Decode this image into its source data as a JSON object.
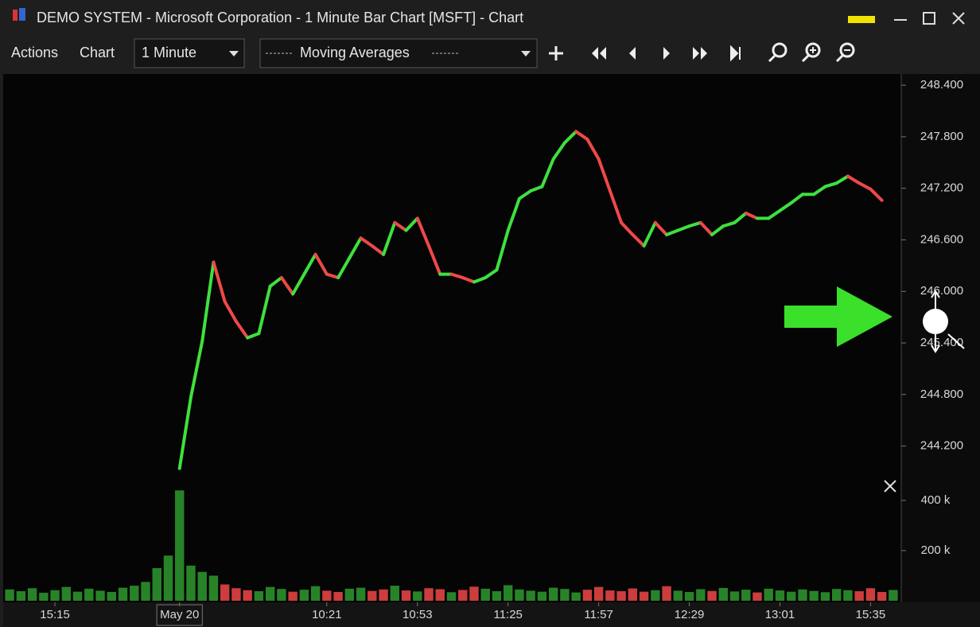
{
  "window": {
    "title": "DEMO SYSTEM - Microsoft Corporation - 1 Minute Bar Chart [MSFT] - Chart"
  },
  "toolbar": {
    "menus": [
      "Actions",
      "Chart"
    ],
    "interval": "1 Minute",
    "study": "Moving Averages"
  },
  "chart_data": {
    "type": "line",
    "categories": [
      null,
      null,
      null,
      null,
      "15:15",
      null,
      null,
      null,
      null,
      null,
      null,
      null,
      null,
      null,
      null,
      "May 20",
      null,
      null,
      null,
      null,
      null,
      null,
      null,
      null,
      null,
      null,
      null,
      null,
      "10:21",
      null,
      null,
      null,
      null,
      null,
      null,
      null,
      "10:53",
      null,
      null,
      null,
      null,
      null,
      null,
      null,
      "11:25",
      null,
      null,
      null,
      null,
      null,
      null,
      null,
      "11:57",
      null,
      null,
      null,
      null,
      null,
      null,
      null,
      "12:29",
      null,
      null,
      null,
      null,
      null,
      null,
      null,
      "13:01",
      null,
      null,
      null,
      null,
      null,
      null,
      null,
      "15:35",
      null,
      null
    ],
    "series": [
      {
        "color": "#3ee03e",
        "down_color": "#f04848",
        "values": [
          null,
          null,
          null,
          null,
          null,
          null,
          null,
          null,
          null,
          null,
          null,
          null,
          null,
          null,
          null,
          243.94,
          244.77,
          245.42,
          246.34,
          245.88,
          245.65,
          245.46,
          245.51,
          246.06,
          246.16,
          245.97,
          246.2,
          246.43,
          246.2,
          246.16,
          246.39,
          246.62,
          246.53,
          246.43,
          246.8,
          246.71,
          246.85,
          246.53,
          246.2,
          246.2,
          246.16,
          246.11,
          246.16,
          246.25,
          246.71,
          247.08,
          247.17,
          247.22,
          247.54,
          247.73,
          247.86,
          247.77,
          247.54,
          247.17,
          246.8,
          246.66,
          246.53,
          246.8,
          246.66,
          246.71,
          246.76,
          246.8,
          246.66,
          246.76,
          246.8,
          246.91,
          246.85,
          246.85,
          246.94,
          247.03,
          247.13,
          247.13,
          247.22,
          247.26,
          247.34,
          247.26,
          247.19,
          247.06,
          null
        ]
      },
      {
        "type": "bar",
        "axis": "y2",
        "color": "#2f9a2f",
        "values": [
          45000,
          38000,
          50000,
          32000,
          42000,
          55000,
          36000,
          48000,
          40000,
          35000,
          52000,
          60000,
          75000,
          130000,
          180000,
          440000,
          140000,
          115000,
          100000,
          65000,
          50000,
          42000,
          38000,
          55000,
          47000,
          36000,
          44000,
          58000,
          40000,
          35000,
          48000,
          52000,
          39000,
          45000,
          60000,
          41000,
          37000,
          50000,
          46000,
          34000,
          43000,
          56000,
          48000,
          38000,
          62000,
          45000,
          40000,
          36000,
          52000,
          47000,
          33000,
          44000,
          55000,
          41000,
          38000,
          49000,
          36000,
          42000,
          58000,
          40000,
          35000,
          46000,
          39000,
          51000,
          37000,
          44000,
          33000,
          48000,
          41000,
          36000,
          45000,
          39000,
          34000,
          47000,
          42000,
          38000,
          50000,
          35000,
          43000
        ]
      }
    ],
    "ylim": [
      242.4,
      248.53
    ],
    "yticks": [
      {
        "value": 244.2,
        "label": "244.200"
      },
      {
        "value": 244.8,
        "label": "244.800"
      },
      {
        "value": 245.4,
        "label": "245.400"
      },
      {
        "value": 246.0,
        "label": "246.000"
      },
      {
        "value": 246.6,
        "label": "246.600"
      },
      {
        "value": 247.2,
        "label": "247.200"
      },
      {
        "value": 247.8,
        "label": "247.800"
      },
      {
        "value": 248.4,
        "label": "248.400"
      }
    ],
    "y2lim": [
      0,
      2100000
    ],
    "y2ticks": [
      {
        "value": 200000,
        "label": "200 k"
      },
      {
        "value": 400000,
        "label": "400 k"
      }
    ]
  }
}
